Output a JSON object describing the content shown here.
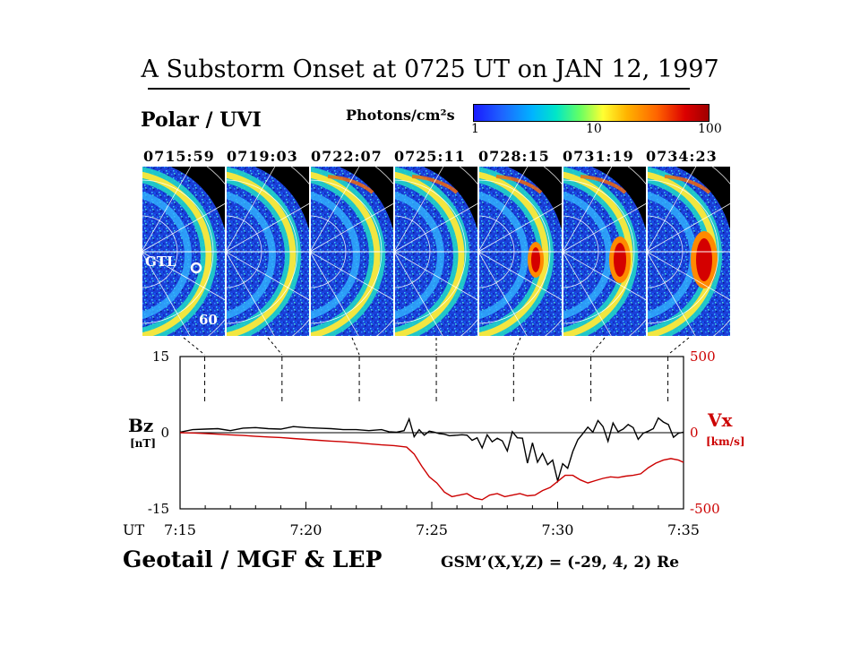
{
  "title": "A Substorm Onset at 0725 UT on JAN 12, 1997",
  "polar_label": "Polar / UVI",
  "colorbar": {
    "title": "Photons/cm²s",
    "ticks": [
      "1",
      "10",
      "100"
    ]
  },
  "image_times": [
    "0715:59",
    "0719:03",
    "0722:07",
    "0725:11",
    "0728:15",
    "0731:19",
    "0734:23"
  ],
  "image_annotations": {
    "station": "GTL",
    "latitude": "60"
  },
  "geotail_label": "Geotail / MGF & LEP",
  "gsm_label": "GSM’(X,Y,Z) = (-29, 4, 2) Re",
  "colors": {
    "bz": "#000000",
    "vx": "#cc0000"
  },
  "chart_data": {
    "type": "line",
    "xlabel": "UT",
    "x_ticks": [
      "7:15",
      "7:20",
      "7:25",
      "7:30",
      "7:35"
    ],
    "left_axis": {
      "label": "Bz",
      "unit": "[nT]",
      "ticks": [
        "15",
        "0",
        "-15"
      ],
      "range": [
        -15,
        15
      ]
    },
    "right_axis": {
      "label": "Vx",
      "unit": "[km/s]",
      "ticks": [
        "500",
        "0",
        "-500"
      ],
      "range": [
        -500,
        500
      ]
    },
    "image_time_markers_min": [
      15.98,
      19.05,
      22.12,
      25.18,
      28.25,
      31.32,
      34.38
    ],
    "series": [
      {
        "axis": "left",
        "x": [
          15.0,
          15.5,
          16.0,
          16.5,
          17.0,
          17.5,
          18.0,
          18.5,
          19.0,
          19.5,
          20.0,
          20.5,
          21.0,
          21.5,
          22.0,
          22.5,
          23.0,
          23.3,
          23.6,
          23.9,
          24.1,
          24.3,
          24.5,
          24.7,
          24.9,
          25.1,
          25.3,
          25.5,
          25.7,
          26.0,
          26.2,
          26.4,
          26.6,
          26.8,
          27.0,
          27.2,
          27.4,
          27.6,
          27.8,
          28.0,
          28.2,
          28.4,
          28.6,
          28.8,
          29.0,
          29.2,
          29.4,
          29.6,
          29.8,
          30.0,
          30.2,
          30.4,
          30.6,
          30.8,
          31.0,
          31.2,
          31.4,
          31.6,
          31.8,
          32.0,
          32.2,
          32.4,
          32.6,
          32.8,
          33.0,
          33.2,
          33.4,
          33.6,
          33.8,
          34.0,
          34.2,
          34.4,
          34.6,
          34.8,
          35.0
        ],
        "values": [
          0.1,
          0.6,
          0.7,
          0.8,
          0.4,
          0.9,
          1.0,
          0.8,
          0.7,
          1.2,
          1.0,
          0.9,
          0.8,
          0.6,
          0.6,
          0.4,
          0.6,
          0.2,
          0.1,
          0.4,
          2.7,
          -0.8,
          0.6,
          -0.5,
          0.3,
          0.1,
          -0.2,
          -0.3,
          -0.6,
          -0.5,
          -0.4,
          -0.5,
          -1.5,
          -1.0,
          -3.0,
          -0.4,
          -1.8,
          -1.1,
          -1.6,
          -3.6,
          0.2,
          -1.0,
          -1.1,
          -6.0,
          -2.0,
          -5.8,
          -4.1,
          -6.3,
          -5.4,
          -9.5,
          -6.1,
          -7.0,
          -3.7,
          -1.4,
          -0.2,
          1.1,
          0.1,
          2.4,
          1.2,
          -1.7,
          1.9,
          0.2,
          0.7,
          1.6,
          1.0,
          -1.3,
          -0.1,
          0.3,
          0.8,
          2.9,
          2.1,
          1.6,
          -0.9,
          -0.1,
          0.1
        ]
      },
      {
        "axis": "right",
        "x": [
          15.0,
          15.5,
          16.0,
          16.5,
          17.0,
          17.5,
          18.0,
          18.5,
          19.0,
          19.5,
          20.0,
          20.5,
          21.0,
          21.5,
          22.0,
          22.5,
          23.0,
          23.5,
          24.0,
          24.3,
          24.6,
          24.9,
          25.2,
          25.5,
          25.8,
          26.1,
          26.4,
          26.7,
          27.0,
          27.3,
          27.6,
          27.9,
          28.2,
          28.5,
          28.8,
          29.1,
          29.4,
          29.7,
          30.0,
          30.3,
          30.6,
          30.9,
          31.2,
          31.5,
          31.8,
          32.1,
          32.4,
          32.7,
          33.0,
          33.3,
          33.6,
          33.9,
          34.2,
          34.5,
          34.8,
          35.0
        ],
        "values": [
          0,
          -2,
          -5,
          -10,
          -14,
          -18,
          -24,
          -28,
          -32,
          -38,
          -44,
          -50,
          -55,
          -60,
          -66,
          -73,
          -80,
          -85,
          -95,
          -140,
          -220,
          -290,
          -330,
          -390,
          -420,
          -410,
          -400,
          -430,
          -440,
          -410,
          -400,
          -420,
          -410,
          -400,
          -415,
          -410,
          -380,
          -360,
          -320,
          -280,
          -280,
          -310,
          -330,
          -315,
          -300,
          -290,
          -295,
          -285,
          -280,
          -270,
          -230,
          -200,
          -180,
          -170,
          -180,
          -195
        ]
      }
    ]
  }
}
